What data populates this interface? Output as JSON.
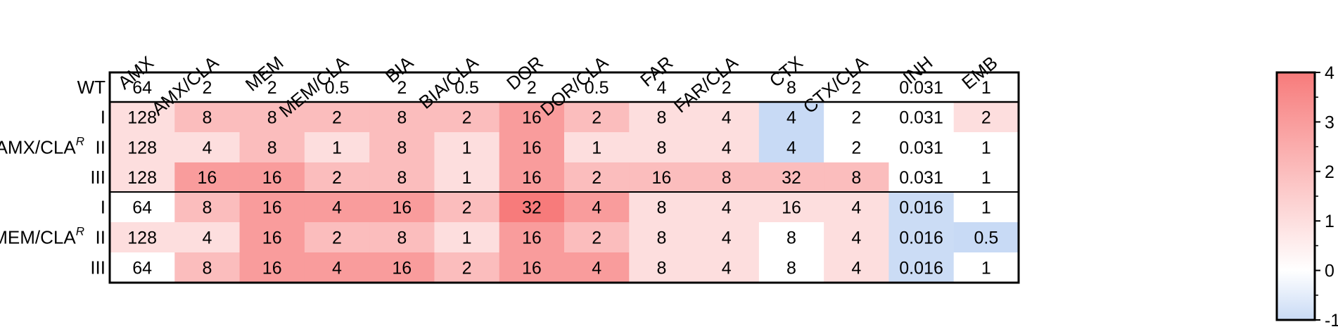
{
  "chart_data": {
    "type": "heatmap",
    "columns": [
      "AMX",
      "AMX/CLA",
      "MEM",
      "MEM/CLA",
      "BIA",
      "BIA/CLA",
      "DOR",
      "DOR/CLA",
      "FAR",
      "FAR/CLA",
      "CTX",
      "CTX/CLA",
      "INH",
      "EMB"
    ],
    "groups": [
      {
        "label": "",
        "rows": [
          {
            "label": "WT",
            "values": [
              "64",
              "2",
              "2",
              "0.5",
              "2",
              "0.5",
              "2",
              "0.5",
              "4",
              "2",
              "8",
              "2",
              "0.031",
              "1"
            ]
          }
        ]
      },
      {
        "label": "AMX/CLA",
        "superscript": "R",
        "rows": [
          {
            "label": "I",
            "values": [
              "128",
              "8",
              "8",
              "2",
              "8",
              "2",
              "16",
              "2",
              "8",
              "4",
              "4",
              "2",
              "0.031",
              "2"
            ]
          },
          {
            "label": "II",
            "values": [
              "128",
              "4",
              "8",
              "1",
              "8",
              "1",
              "16",
              "1",
              "8",
              "4",
              "4",
              "2",
              "0.031",
              "1"
            ]
          },
          {
            "label": "III",
            "values": [
              "128",
              "16",
              "16",
              "2",
              "8",
              "1",
              "16",
              "2",
              "16",
              "8",
              "32",
              "8",
              "0.031",
              "1"
            ]
          }
        ]
      },
      {
        "label": "MEM/CLA",
        "superscript": "R",
        "rows": [
          {
            "label": "I",
            "values": [
              "64",
              "8",
              "16",
              "4",
              "16",
              "2",
              "32",
              "4",
              "8",
              "4",
              "16",
              "4",
              "0.016",
              "1"
            ]
          },
          {
            "label": "II",
            "values": [
              "128",
              "4",
              "16",
              "2",
              "8",
              "1",
              "16",
              "2",
              "8",
              "4",
              "8",
              "4",
              "0.016",
              "0.5"
            ]
          },
          {
            "label": "III",
            "values": [
              "64",
              "8",
              "16",
              "4",
              "16",
              "2",
              "16",
              "4",
              "8",
              "4",
              "8",
              "4",
              "0.016",
              "1"
            ]
          }
        ]
      }
    ],
    "colorbar": {
      "ticks": [
        "4",
        "3",
        "2",
        "1",
        "0",
        "-1"
      ],
      "range": [
        -1,
        4
      ],
      "colors": {
        "low": "#c8daf5",
        "mid": "#ffffff",
        "high": "#f77b7b"
      }
    }
  }
}
